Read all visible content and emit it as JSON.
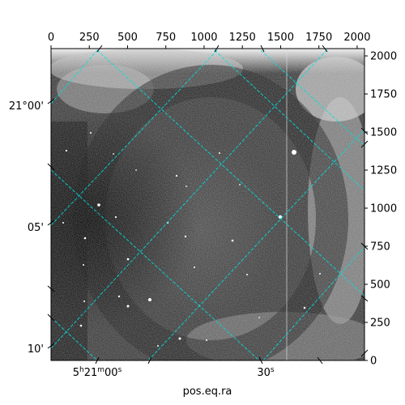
{
  "figure": {
    "xlabel": "pos.eq.ra",
    "grid_color": "#00e0e0",
    "pixel_axes": {
      "x_ticks": [
        "0",
        "250",
        "500",
        "750",
        "1000",
        "1250",
        "1500",
        "1750",
        "2000"
      ],
      "y_ticks": [
        "0",
        "250",
        "500",
        "750",
        "1000",
        "1250",
        "1500",
        "1750",
        "2000"
      ],
      "x_range": [
        0,
        2048
      ],
      "y_range": [
        0,
        2048
      ]
    },
    "ra_ticks": [
      {
        "h": "5",
        "h_unit": "h",
        "m": "21",
        "m_unit": "m",
        "s": "00",
        "s_unit": "s"
      },
      {
        "s": "30",
        "s_unit": "s"
      }
    ],
    "dec_ticks": [
      "21°00'",
      "05'",
      "10'"
    ]
  }
}
